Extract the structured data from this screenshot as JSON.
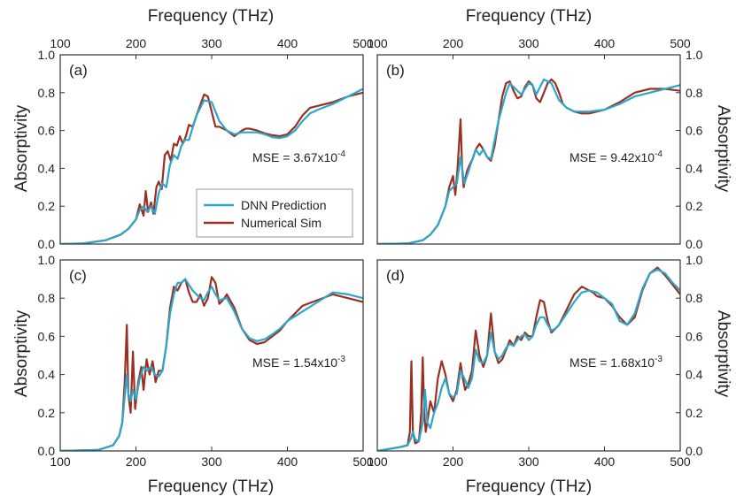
{
  "figure": {
    "top_xlabel": "Frequency (THz)",
    "bottom_xlabel": "Frequency (THz)",
    "ylabel": "Absorptivity",
    "legend": {
      "labels": [
        "DNN Prediction",
        "Numerical Sim"
      ],
      "placement": "inside panel (a), lower right"
    },
    "colors": {
      "dnn": "#2aa7c9",
      "sim": "#9b2f22",
      "frame": "#333333",
      "legend_border": "#999999"
    }
  },
  "chart_data": [
    {
      "type": "line",
      "panel": "(a)",
      "mse_base": "MSE = 3.67x10",
      "mse_exp": "-4",
      "xlim": [
        100,
        500
      ],
      "ylim": [
        0,
        1.0
      ],
      "xticks": [
        "100",
        "200",
        "300",
        "400",
        "500"
      ],
      "yticks": [
        "0.0",
        "0.2",
        "0.4",
        "0.6",
        "0.8",
        "1.0"
      ],
      "series": [
        {
          "name": "DNN Prediction",
          "x": [
            100,
            130,
            160,
            180,
            190,
            200,
            205,
            210,
            215,
            220,
            225,
            230,
            235,
            240,
            245,
            250,
            255,
            260,
            265,
            270,
            280,
            290,
            300,
            310,
            320,
            330,
            340,
            350,
            360,
            370,
            380,
            390,
            400,
            410,
            420,
            430,
            440,
            460,
            480,
            500
          ],
          "y": [
            0,
            0.003,
            0.02,
            0.05,
            0.08,
            0.13,
            0.18,
            0.2,
            0.17,
            0.2,
            0.16,
            0.27,
            0.32,
            0.3,
            0.42,
            0.47,
            0.45,
            0.52,
            0.55,
            0.55,
            0.68,
            0.76,
            0.75,
            0.65,
            0.6,
            0.58,
            0.59,
            0.59,
            0.59,
            0.58,
            0.565,
            0.56,
            0.57,
            0.6,
            0.65,
            0.69,
            0.71,
            0.74,
            0.78,
            0.82
          ]
        },
        {
          "name": "Numerical Sim",
          "x": [
            100,
            130,
            160,
            180,
            190,
            200,
            205,
            210,
            213,
            216,
            220,
            223,
            227,
            230,
            234,
            238,
            242,
            246,
            250,
            254,
            258,
            262,
            266,
            270,
            275,
            280,
            290,
            295,
            300,
            305,
            310,
            320,
            330,
            340,
            345,
            350,
            360,
            370,
            380,
            390,
            400,
            410,
            420,
            430,
            440,
            460,
            480,
            500
          ],
          "y": [
            0,
            0.003,
            0.02,
            0.05,
            0.08,
            0.13,
            0.21,
            0.15,
            0.28,
            0.17,
            0.22,
            0.16,
            0.3,
            0.33,
            0.29,
            0.47,
            0.49,
            0.44,
            0.53,
            0.52,
            0.57,
            0.53,
            0.57,
            0.63,
            0.62,
            0.68,
            0.79,
            0.78,
            0.7,
            0.62,
            0.62,
            0.6,
            0.57,
            0.6,
            0.61,
            0.61,
            0.6,
            0.585,
            0.575,
            0.57,
            0.58,
            0.62,
            0.68,
            0.72,
            0.73,
            0.75,
            0.78,
            0.8
          ]
        }
      ]
    },
    {
      "type": "line",
      "panel": "(b)",
      "mse_base": "MSE = 9.42x10",
      "mse_exp": "-4",
      "xlim": [
        100,
        500
      ],
      "ylim": [
        0,
        1.0
      ],
      "xticks": [
        "100",
        "200",
        "300",
        "400",
        "500"
      ],
      "yticks": [
        "0.0",
        "0.2",
        "0.4",
        "0.6",
        "0.8",
        "1.0"
      ],
      "series": [
        {
          "name": "DNN Prediction",
          "x": [
            100,
            140,
            160,
            170,
            180,
            190,
            195,
            200,
            205,
            210,
            215,
            220,
            225,
            230,
            235,
            240,
            245,
            250,
            255,
            260,
            270,
            275,
            280,
            290,
            300,
            305,
            310,
            320,
            330,
            340,
            350,
            360,
            370,
            380,
            390,
            400,
            420,
            440,
            460,
            480,
            500
          ],
          "y": [
            0,
            0.003,
            0.02,
            0.05,
            0.1,
            0.2,
            0.28,
            0.3,
            0.32,
            0.46,
            0.32,
            0.38,
            0.44,
            0.5,
            0.47,
            0.5,
            0.46,
            0.45,
            0.55,
            0.65,
            0.8,
            0.85,
            0.83,
            0.79,
            0.85,
            0.84,
            0.79,
            0.87,
            0.85,
            0.76,
            0.72,
            0.7,
            0.7,
            0.7,
            0.705,
            0.71,
            0.74,
            0.78,
            0.8,
            0.82,
            0.84
          ]
        },
        {
          "name": "Numerical Sim",
          "x": [
            100,
            140,
            160,
            170,
            180,
            190,
            195,
            200,
            203,
            206,
            210,
            212,
            214,
            218,
            222,
            226,
            230,
            235,
            240,
            245,
            250,
            255,
            260,
            265,
            270,
            275,
            280,
            285,
            290,
            295,
            300,
            305,
            310,
            315,
            320,
            325,
            330,
            335,
            340,
            345,
            350,
            360,
            370,
            380,
            390,
            400,
            420,
            440,
            460,
            480,
            500
          ],
          "y": [
            0,
            0.003,
            0.02,
            0.05,
            0.1,
            0.2,
            0.3,
            0.36,
            0.26,
            0.4,
            0.66,
            0.4,
            0.3,
            0.38,
            0.42,
            0.45,
            0.5,
            0.53,
            0.5,
            0.46,
            0.44,
            0.52,
            0.65,
            0.78,
            0.85,
            0.86,
            0.81,
            0.77,
            0.78,
            0.83,
            0.86,
            0.84,
            0.77,
            0.75,
            0.8,
            0.85,
            0.87,
            0.85,
            0.8,
            0.74,
            0.72,
            0.7,
            0.69,
            0.69,
            0.7,
            0.71,
            0.75,
            0.8,
            0.82,
            0.82,
            0.81
          ]
        }
      ]
    },
    {
      "type": "line",
      "panel": "(c)",
      "mse_base": "MSE = 1.54x10",
      "mse_exp": "-3",
      "xlim": [
        100,
        500
      ],
      "ylim": [
        0,
        1.0
      ],
      "xticks": [
        "100",
        "200",
        "300",
        "400",
        "500"
      ],
      "yticks": [
        "0.0",
        "0.2",
        "0.4",
        "0.6",
        "0.8",
        "1.0"
      ],
      "series": [
        {
          "name": "DNN Prediction",
          "x": [
            100,
            150,
            170,
            178,
            182,
            185,
            188,
            190,
            193,
            196,
            200,
            205,
            210,
            215,
            220,
            225,
            230,
            235,
            240,
            245,
            250,
            255,
            260,
            265,
            270,
            275,
            280,
            285,
            290,
            295,
            300,
            305,
            310,
            320,
            330,
            340,
            350,
            360,
            370,
            380,
            390,
            400,
            420,
            440,
            460,
            480,
            500
          ],
          "y": [
            0,
            0.005,
            0.03,
            0.08,
            0.15,
            0.28,
            0.4,
            0.3,
            0.26,
            0.32,
            0.27,
            0.38,
            0.44,
            0.42,
            0.44,
            0.4,
            0.39,
            0.42,
            0.55,
            0.72,
            0.82,
            0.88,
            0.88,
            0.9,
            0.87,
            0.84,
            0.82,
            0.8,
            0.79,
            0.83,
            0.86,
            0.82,
            0.79,
            0.8,
            0.73,
            0.64,
            0.59,
            0.575,
            0.585,
            0.61,
            0.64,
            0.68,
            0.73,
            0.78,
            0.83,
            0.82,
            0.8
          ]
        },
        {
          "name": "Numerical Sim",
          "x": [
            100,
            150,
            170,
            178,
            182,
            185,
            188,
            190,
            193,
            196,
            199,
            203,
            207,
            210,
            214,
            218,
            222,
            226,
            230,
            235,
            240,
            245,
            250,
            255,
            260,
            265,
            270,
            275,
            280,
            285,
            290,
            295,
            300,
            305,
            310,
            315,
            320,
            330,
            340,
            350,
            360,
            370,
            380,
            390,
            400,
            420,
            440,
            460,
            480,
            500
          ],
          "y": [
            0,
            0.005,
            0.03,
            0.08,
            0.15,
            0.35,
            0.66,
            0.3,
            0.2,
            0.52,
            0.22,
            0.36,
            0.44,
            0.32,
            0.48,
            0.4,
            0.47,
            0.36,
            0.42,
            0.42,
            0.55,
            0.75,
            0.86,
            0.84,
            0.88,
            0.9,
            0.83,
            0.78,
            0.78,
            0.82,
            0.76,
            0.8,
            0.91,
            0.88,
            0.77,
            0.79,
            0.82,
            0.75,
            0.64,
            0.58,
            0.56,
            0.57,
            0.6,
            0.63,
            0.68,
            0.76,
            0.79,
            0.82,
            0.8,
            0.78
          ]
        }
      ]
    },
    {
      "type": "line",
      "panel": "(d)",
      "mse_base": "MSE = 1.68x10",
      "mse_exp": "-3",
      "xlim": [
        100,
        500
      ],
      "ylim": [
        0,
        1.0
      ],
      "xticks": [
        "100",
        "200",
        "300",
        "400",
        "500"
      ],
      "yticks": [
        "0.0",
        "0.2",
        "0.4",
        "0.6",
        "0.8",
        "1.0"
      ],
      "series": [
        {
          "name": "DNN Prediction",
          "x": [
            100,
            130,
            140,
            144,
            147,
            150,
            155,
            160,
            163,
            166,
            170,
            175,
            180,
            185,
            190,
            195,
            200,
            205,
            210,
            215,
            220,
            225,
            230,
            235,
            240,
            245,
            250,
            255,
            260,
            265,
            270,
            275,
            280,
            285,
            290,
            295,
            300,
            305,
            310,
            315,
            320,
            325,
            330,
            335,
            340,
            350,
            360,
            370,
            380,
            390,
            400,
            410,
            420,
            430,
            440,
            450,
            460,
            470,
            480,
            490,
            500
          ],
          "y": [
            0,
            0.02,
            0.03,
            0.06,
            0.1,
            0.06,
            0.05,
            0.15,
            0.32,
            0.15,
            0.12,
            0.2,
            0.25,
            0.33,
            0.38,
            0.3,
            0.28,
            0.3,
            0.42,
            0.38,
            0.33,
            0.38,
            0.53,
            0.47,
            0.46,
            0.5,
            0.62,
            0.52,
            0.48,
            0.5,
            0.54,
            0.56,
            0.55,
            0.58,
            0.6,
            0.61,
            0.58,
            0.6,
            0.66,
            0.7,
            0.7,
            0.66,
            0.63,
            0.64,
            0.66,
            0.72,
            0.78,
            0.83,
            0.84,
            0.83,
            0.8,
            0.77,
            0.68,
            0.66,
            0.72,
            0.85,
            0.93,
            0.95,
            0.93,
            0.88,
            0.84
          ]
        },
        {
          "name": "Numerical Sim",
          "x": [
            100,
            130,
            140,
            143,
            145,
            147,
            150,
            155,
            158,
            160,
            162,
            164,
            166,
            170,
            175,
            180,
            185,
            190,
            195,
            200,
            205,
            210,
            213,
            216,
            220,
            225,
            230,
            235,
            240,
            245,
            250,
            255,
            260,
            265,
            270,
            275,
            280,
            285,
            290,
            295,
            300,
            305,
            310,
            315,
            320,
            325,
            330,
            335,
            340,
            350,
            360,
            370,
            380,
            385,
            390,
            400,
            410,
            420,
            430,
            440,
            450,
            460,
            470,
            480,
            490,
            500
          ],
          "y": [
            0,
            0.02,
            0.03,
            0.1,
            0.47,
            0.1,
            0.04,
            0.05,
            0.2,
            0.49,
            0.2,
            0.1,
            0.15,
            0.26,
            0.2,
            0.38,
            0.47,
            0.4,
            0.3,
            0.26,
            0.32,
            0.46,
            0.38,
            0.32,
            0.35,
            0.42,
            0.63,
            0.5,
            0.44,
            0.5,
            0.72,
            0.52,
            0.46,
            0.48,
            0.53,
            0.58,
            0.55,
            0.6,
            0.58,
            0.62,
            0.6,
            0.6,
            0.7,
            0.79,
            0.78,
            0.68,
            0.62,
            0.64,
            0.66,
            0.74,
            0.82,
            0.86,
            0.84,
            0.83,
            0.81,
            0.8,
            0.76,
            0.7,
            0.66,
            0.7,
            0.84,
            0.93,
            0.96,
            0.92,
            0.87,
            0.82
          ]
        }
      ]
    }
  ]
}
